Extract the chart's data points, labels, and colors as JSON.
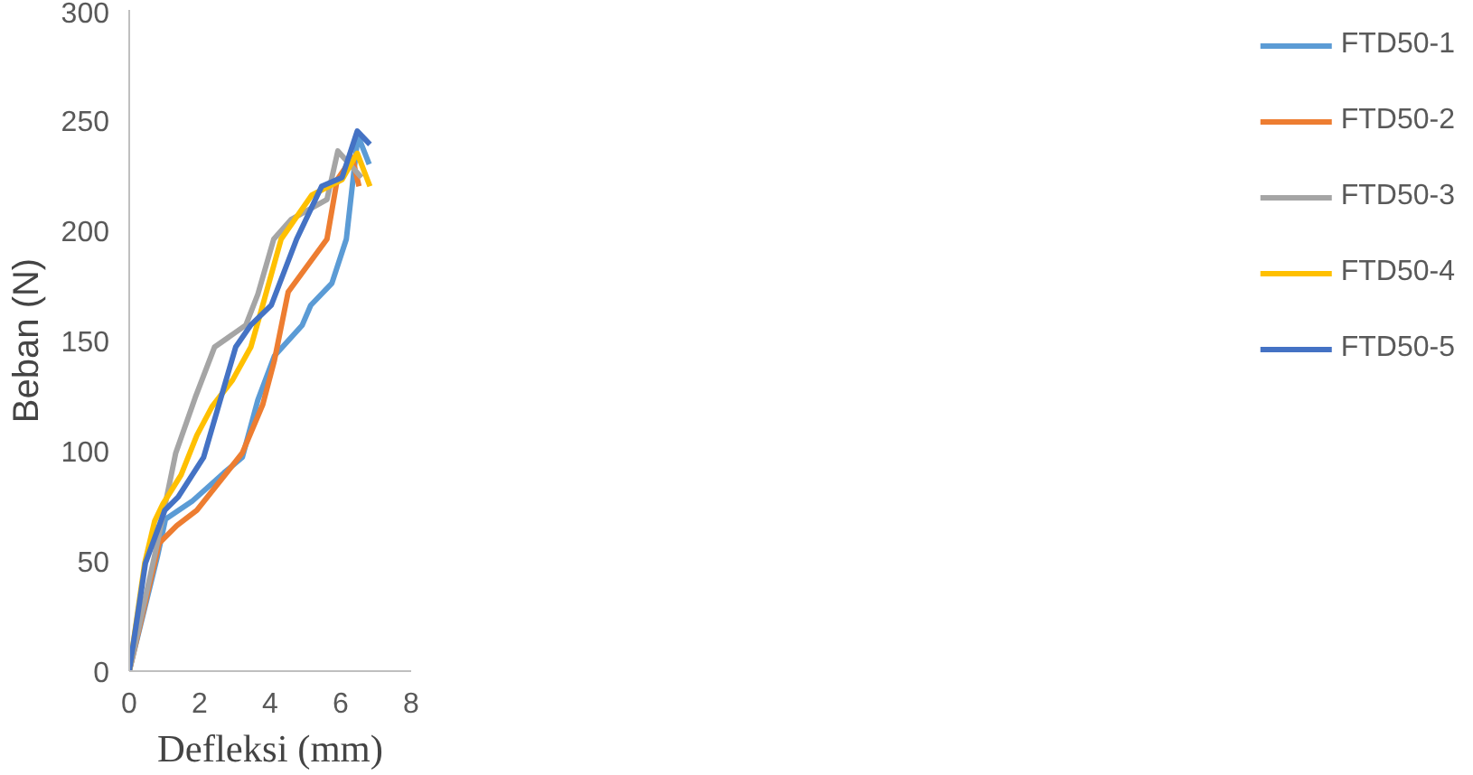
{
  "chart_data": {
    "type": "line",
    "xlabel": "Defleksi (mm)",
    "ylabel": "Beban (N)",
    "xlim": [
      0,
      8
    ],
    "ylim": [
      0,
      300
    ],
    "xticks": [
      0,
      2,
      4,
      6,
      8
    ],
    "yticks": [
      0,
      50,
      100,
      150,
      200,
      250,
      300
    ],
    "grid": false,
    "legend": "right",
    "marker": "none",
    "line_style": "solid",
    "series": [
      {
        "name": "FTD50-1",
        "color": "#5b9bd5",
        "x": [
          0,
          0.8,
          1.03,
          1.78,
          2.69,
          3.21,
          3.65,
          4.12,
          4.91,
          5.15,
          5.75,
          6.16,
          6.49,
          6.81
        ],
        "values": [
          0,
          52,
          69,
          77,
          90,
          97,
          123,
          143,
          157,
          166,
          176,
          196,
          243,
          230
        ]
      },
      {
        "name": "FTD50-2",
        "color": "#ed7d31",
        "x": [
          0,
          0.85,
          1.35,
          1.92,
          3.21,
          3.79,
          4.12,
          4.51,
          5.61,
          5.9,
          6.33,
          6.52
        ],
        "values": [
          0,
          58,
          66,
          73,
          99,
          121,
          141,
          172,
          196,
          223,
          233,
          220
        ]
      },
      {
        "name": "FTD50-3",
        "color": "#a5a5a5",
        "x": [
          0,
          0.77,
          1.32,
          1.87,
          2.42,
          3.31,
          3.65,
          4.1,
          4.6,
          5.61,
          5.92,
          6.59
        ],
        "values": [
          0,
          56,
          99,
          124,
          147,
          157,
          171,
          196,
          205,
          214,
          236,
          224
        ]
      },
      {
        "name": "FTD50-4",
        "color": "#ffc000",
        "x": [
          0,
          0.44,
          0.72,
          0.96,
          1.47,
          1.92,
          2.35,
          2.93,
          3.45,
          3.84,
          4.31,
          5.18,
          6.04,
          6.47,
          6.83
        ],
        "values": [
          0,
          49,
          68,
          76,
          89,
          107,
          120,
          132,
          147,
          169,
          196,
          216,
          223,
          235,
          220
        ]
      },
      {
        "name": "FTD50-5",
        "color": "#4472c4",
        "x": [
          0,
          0.46,
          1.01,
          1.39,
          2.11,
          3.02,
          3.45,
          4.03,
          4.75,
          5.46,
          6.04,
          6.47,
          6.83
        ],
        "values": [
          0,
          49,
          73,
          79,
          97,
          147,
          157,
          166,
          196,
          220,
          224,
          245,
          239
        ]
      }
    ]
  }
}
